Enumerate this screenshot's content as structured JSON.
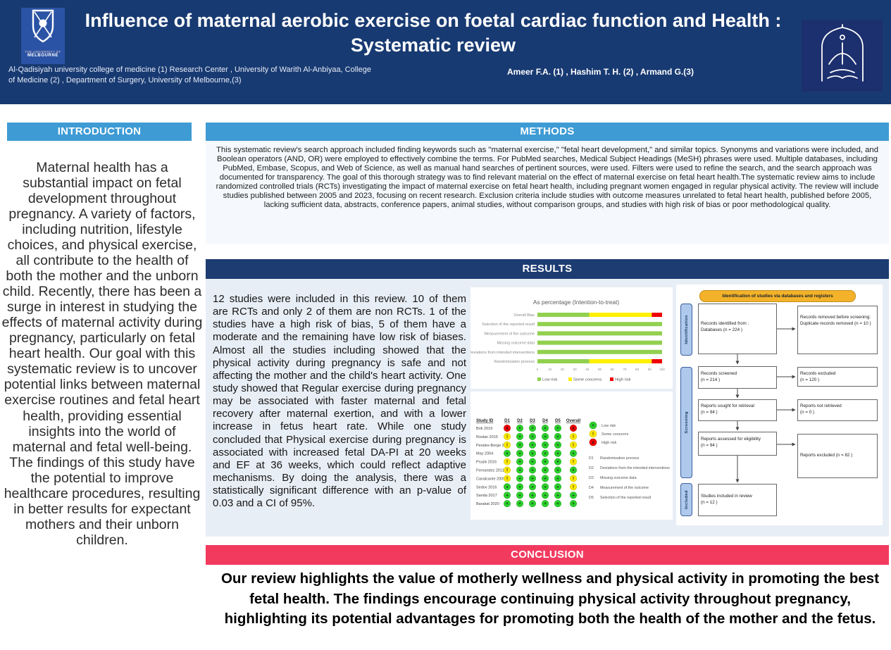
{
  "header": {
    "title": "Influence of maternal aerobic exercise on foetal cardiac function and Health :\nSystematic review",
    "affiliations": "Al-Qadisiyah university college of medicine (1)  Research Center , University of Warith Al-Anbiyaa, College\nof Medicine (2) ,  Department of Surgery, University of Melbourne,(3)",
    "authors": "Ameer F.A. (1) , Hashim T. H. (2)  , Armand G.(3)",
    "uom_caption_line1": "THE UNIVERSITY OF",
    "uom_caption_line2": "MELBOURNE"
  },
  "sections": {
    "introduction": {
      "heading": "INTRODUCTION",
      "body": "Maternal health has a substantial impact on fetal development throughout pregnancy. A variety of factors, including nutrition, lifestyle choices, and physical exercise, all contribute to the health of both the mother and the unborn child. Recently, there has been a surge in interest in studying the effects of maternal activity during pregnancy, particularly on fetal heart health. Our goal with this systematic review is to uncover potential links between maternal exercise routines and fetal heart health, providing essential insights into the world of maternal and fetal well-being. The findings of this study have the potential to improve healthcare procedures, resulting in better results for expectant mothers and their unborn children."
    },
    "methods": {
      "heading": "METHODS",
      "body": "This systematic review's search approach included finding keywords such as \"maternal exercise,\" \"fetal heart development,\" and similar topics. Synonyms and variations were included, and Boolean operators (AND, OR) were employed to effectively combine the terms. For PubMed searches, Medical Subject Headings (MeSH) phrases were used. Multiple databases, including PubMed, Embase, Scopus, and Web of Science, as well as manual hand searches of pertinent sources, were used. Filters were used to refine the search, and the search approach was documented for transparency. The goal of this thorough strategy was to find relevant material on the effect of maternal exercise on fetal heart health.The systematic review aims to include randomized controlled trials (RCTs) investigating the impact of maternal exercise on fetal heart health, including pregnant women engaged in regular physical activity. The review will include studies published between 2005 and 2023, focusing on recent research. Exclusion criteria include studies with outcome measures unrelated to fetal heart health, published before 2005, lacking sufficient data, abstracts, conference papers, animal studies, without comparison groups, and studies with high risk of bias or poor methodological quality."
    },
    "results": {
      "heading": "RESULTS",
      "body": "12 studies were included in this review. 10 of them are RCTs and only 2 of them are non RCTs. 1 of the studies have a high risk of bias, 5 of them have a moderate and the remaining have low risk of biases. Almost all the studies including showed that the physical activity during pregnancy is safe and not affecting the mother and the child's heart activity. One study showed that Regular exercise during pregnancy may be associated with faster maternal and fetal recovery after maternal exertion, and with a lower increase in fetus heart rate. While one study concluded that Physical exercise during pregnancy is associated with increased fetal DA-PI at 20 weeks and EF at 36 weeks, which could reflect adaptive mechanisms. By doing the analysis, there was a statistically significant difference with an p-value of 0.03 and a CI of 95%."
    },
    "conclusion": {
      "heading": "CONCLUSION",
      "body": "Our review highlights the value of motherly wellness and physical activity in promoting the best fetal health. The findings encourage continuing physical activity throughout pregnancy, highlighting its potential advantages for promoting both the health of the mother and the fetus."
    }
  },
  "colors": {
    "header_navy": "#183A72",
    "band_blue": "#3E9BD4",
    "band_navy": "#1C3C72",
    "band_pink": "#F23A5F",
    "rob_green": "#92D050",
    "rob_yellow": "#FFF000",
    "rob_red": "#EE0000",
    "traffic_green": "#2BD22B",
    "traffic_yellow": "#FFE800",
    "traffic_red": "#F40000",
    "prisma_banner": "#F3B229",
    "prisma_stage": "#AEC9EC"
  },
  "chart_data": [
    {
      "type": "bar",
      "orientation": "horizontal-stacked",
      "title": "As percentage (Intention-to-treat)",
      "categories": [
        "Overall Bias",
        "Selection of the reported result",
        "Measurement of the outcome",
        "Missing outcome data",
        "Deviations from intended interventions",
        "Randomization process"
      ],
      "series": [
        {
          "name": "Low risk",
          "color": "#92D050",
          "values": [
            41.7,
            100,
            100,
            100,
            100,
            41.7
          ]
        },
        {
          "name": "Some concerns",
          "color": "#FFF000",
          "values": [
            50,
            0,
            0,
            0,
            0,
            50
          ]
        },
        {
          "name": "High risk",
          "color": "#EE0000",
          "values": [
            8.3,
            0,
            0,
            0,
            0,
            8.3
          ]
        }
      ],
      "xlabel": "",
      "ylabel": "",
      "xlim": [
        0,
        100
      ],
      "xticks": [
        0,
        10,
        20,
        30,
        40,
        50,
        60,
        70,
        80,
        90,
        100
      ],
      "legend_position": "bottom",
      "grid": false
    },
    {
      "type": "table",
      "subtype": "risk-of-bias-traffic-light",
      "columns": [
        "Study ID",
        "D1",
        "D2",
        "D3",
        "D4",
        "D5",
        "Overall"
      ],
      "rows": [
        {
          "study": "Brik 2019",
          "d": [
            "high",
            "low",
            "low",
            "low",
            "low"
          ],
          "overall": "high"
        },
        {
          "study": "Roslan 2015",
          "d": [
            "some",
            "low",
            "low",
            "low",
            "low"
          ],
          "overall": "some"
        },
        {
          "study": "Perales-Borge 2019",
          "d": [
            "some",
            "low",
            "low",
            "low",
            "low"
          ],
          "overall": "some"
        },
        {
          "study": "May 2004",
          "d": [
            "low",
            "low",
            "low",
            "low",
            "low"
          ],
          "overall": "low"
        },
        {
          "study": "Prusik 2016",
          "d": [
            "some",
            "low",
            "low",
            "low",
            "low"
          ],
          "overall": "some"
        },
        {
          "study": "Fernandez 2011",
          "d": [
            "some",
            "low",
            "low",
            "low",
            "low"
          ],
          "overall": "low"
        },
        {
          "study": "Cavalcante 2009",
          "d": [
            "some",
            "low",
            "low",
            "low",
            "low"
          ],
          "overall": "some"
        },
        {
          "study": "Sedov 2016",
          "d": [
            "low",
            "low",
            "low",
            "low",
            "low"
          ],
          "overall": "some"
        },
        {
          "study": "Sanda 2017",
          "d": [
            "low",
            "low",
            "low",
            "low",
            "low"
          ],
          "overall": "low"
        },
        {
          "study": "Barakat 2020",
          "d": [
            "low",
            "low",
            "low",
            "low",
            "low"
          ],
          "overall": "low"
        }
      ],
      "legend": [
        {
          "level": "low",
          "glyph": "+",
          "label": "Low risk"
        },
        {
          "level": "some",
          "glyph": "!",
          "label": "Some concerns"
        },
        {
          "level": "high",
          "glyph": "x",
          "label": "High risk"
        }
      ],
      "domains": [
        {
          "id": "D1",
          "label": "Randomisation process"
        },
        {
          "id": "D2",
          "label": "Deviations from the intended interventions"
        },
        {
          "id": "D3",
          "label": "Missing outcome data"
        },
        {
          "id": "D4",
          "label": "Measurement of the outcome"
        },
        {
          "id": "D5",
          "label": "Selection of the reported result"
        }
      ]
    }
  ],
  "prisma": {
    "banner": "Identification of studies via databases and registers",
    "stages": [
      "Identification",
      "Screening",
      "Included"
    ],
    "boxes": {
      "b1": "Records identified from :\n    Databases (n = 224 )",
      "b1r": "Records removed before screening:\n    Duplicate records removed  (n = 10 )",
      "b2": "Records screened\n(n = 214 )",
      "b2r": "Records excluded\n(n = 120 )",
      "b3": "Reports sought for retrieval\n(n = 94 )",
      "b3r": "Reports not retrieved\n(n = 0 )",
      "b4": "Reports assessed for eligibility\n(n = 94 )",
      "b4r": "Reports excluded (n = 82 )",
      "b5": "Studies included in review\n(n = 12 )"
    }
  }
}
